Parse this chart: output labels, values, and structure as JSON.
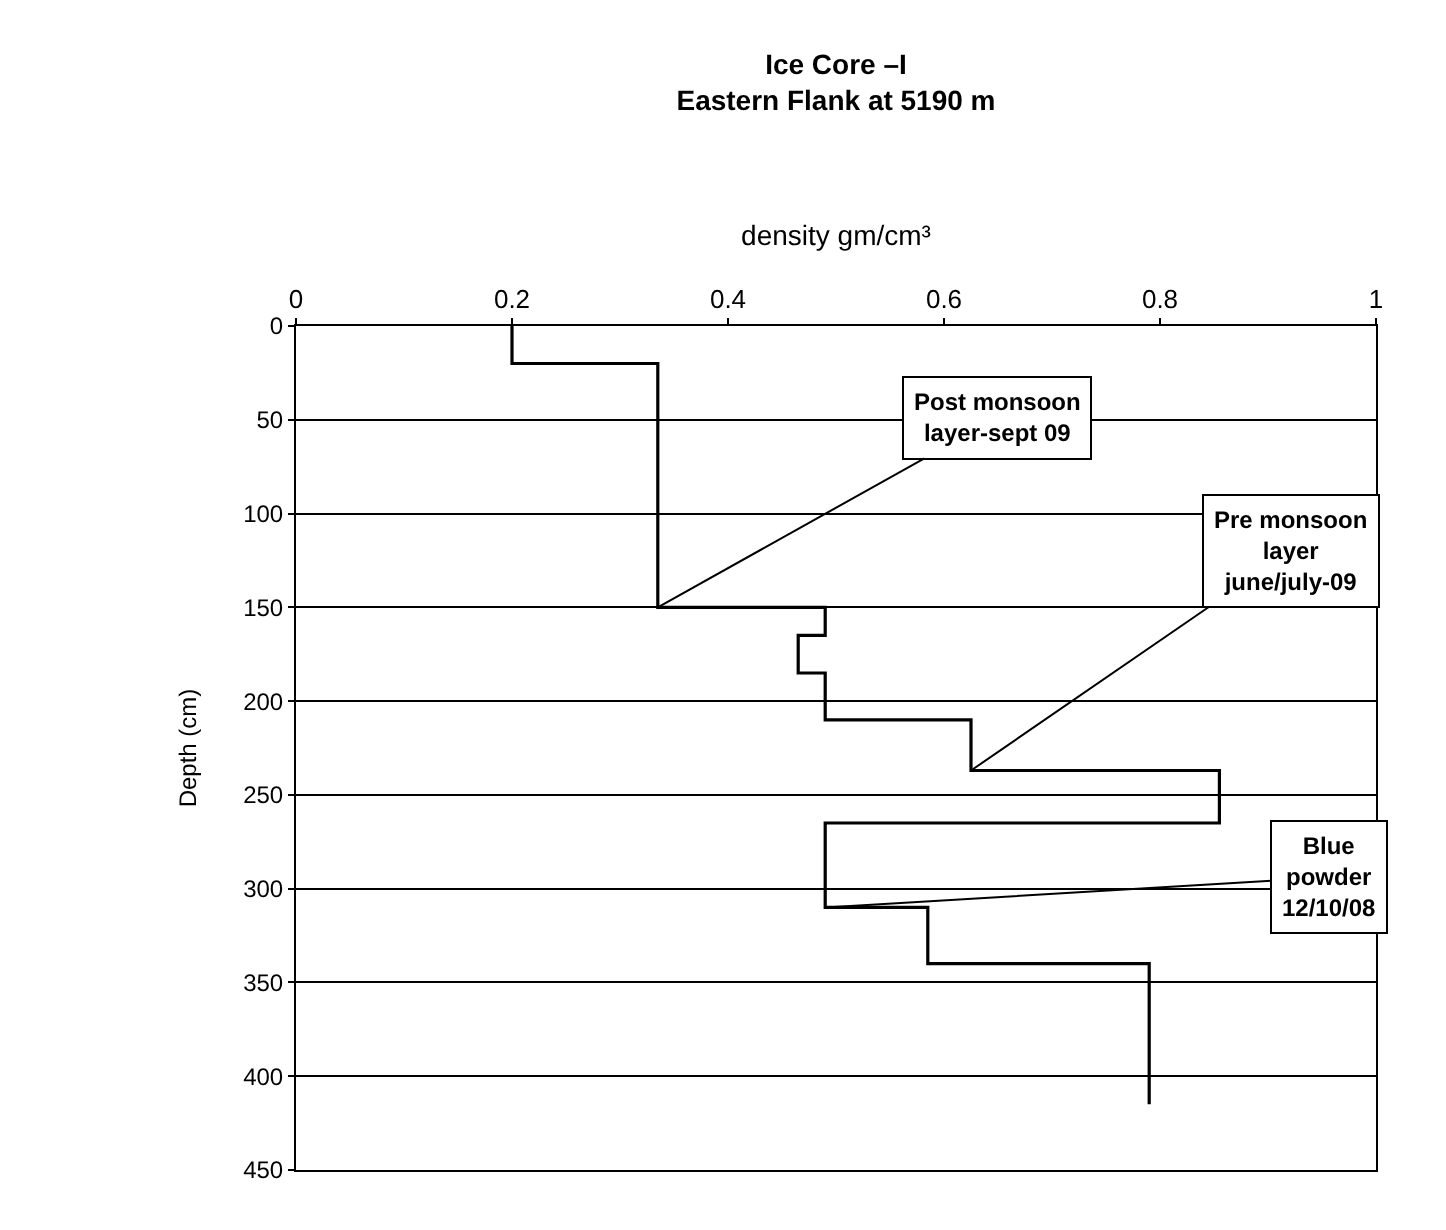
{
  "chart_data": {
    "type": "line",
    "title": "Ice Core –I\nEastern Flank at 5190 m",
    "xlabel": "density gm/cm³",
    "ylabel": "Depth (cm)",
    "x": [
      0.2,
      0.2,
      0.335,
      0.335,
      0.49,
      0.49,
      0.465,
      0.465,
      0.49,
      0.49,
      0.625,
      0.625,
      0.855,
      0.855,
      0.49,
      0.49,
      0.585,
      0.585,
      0.79,
      0.79
    ],
    "series": [
      {
        "color": "#000000",
        "values": [
          0,
          20,
          20,
          150,
          150,
          165,
          165,
          185,
          185,
          210,
          210,
          237,
          237,
          265,
          265,
          310,
          310,
          340,
          340,
          415
        ]
      }
    ],
    "xlim": [
      0,
      1
    ],
    "xticks": [
      0,
      0.2,
      0.4,
      0.6,
      0.8,
      1
    ],
    "ylim": [
      450,
      0
    ],
    "yticks": [
      0,
      50,
      100,
      150,
      200,
      250,
      300,
      350,
      400,
      450
    ],
    "grid": "y",
    "marker": "none",
    "line_style": "solid",
    "annotations": [
      {
        "text": "Post monsoon\nlayer-sept 09",
        "x": 0.335,
        "y": 150
      },
      {
        "text": "Pre monsoon\nlayer\njune/july-09",
        "x": 0.625,
        "y": 237
      },
      {
        "text": "Blue\npowder\n12/10/08",
        "x": 0.49,
        "y": 310
      }
    ]
  }
}
